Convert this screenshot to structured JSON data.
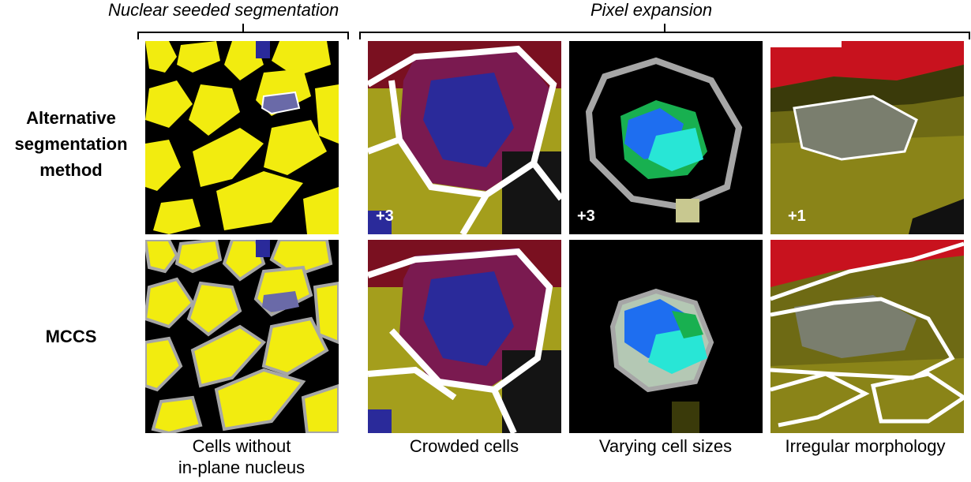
{
  "headers": {
    "left": "Nuclear seeded segmentation",
    "right": "Pixel expansion"
  },
  "row_labels": {
    "top": [
      "Alternative",
      "segmentation",
      "method"
    ],
    "bottom": "MCCS"
  },
  "columns": [
    {
      "caption": [
        "Cells without",
        "in-plane nucleus"
      ]
    },
    {
      "caption": [
        "Crowded cells"
      ],
      "badge": "+3"
    },
    {
      "caption": [
        "Varying cell sizes"
      ],
      "badge": "+3"
    },
    {
      "caption": [
        "Irregular morphology"
      ],
      "badge": "+1"
    }
  ],
  "colors": {
    "yellow": "#f2ec0f",
    "olive": "#a49e1c",
    "dark_red": "#7a1020",
    "red": "#c8121e",
    "blue": "#2a2a9a",
    "bright_blue": "#1e6ef0",
    "cyan": "#28e6d6",
    "green": "#18b050",
    "white": "#ffffff",
    "grey": "#a6a6a6",
    "black": "#000000"
  }
}
